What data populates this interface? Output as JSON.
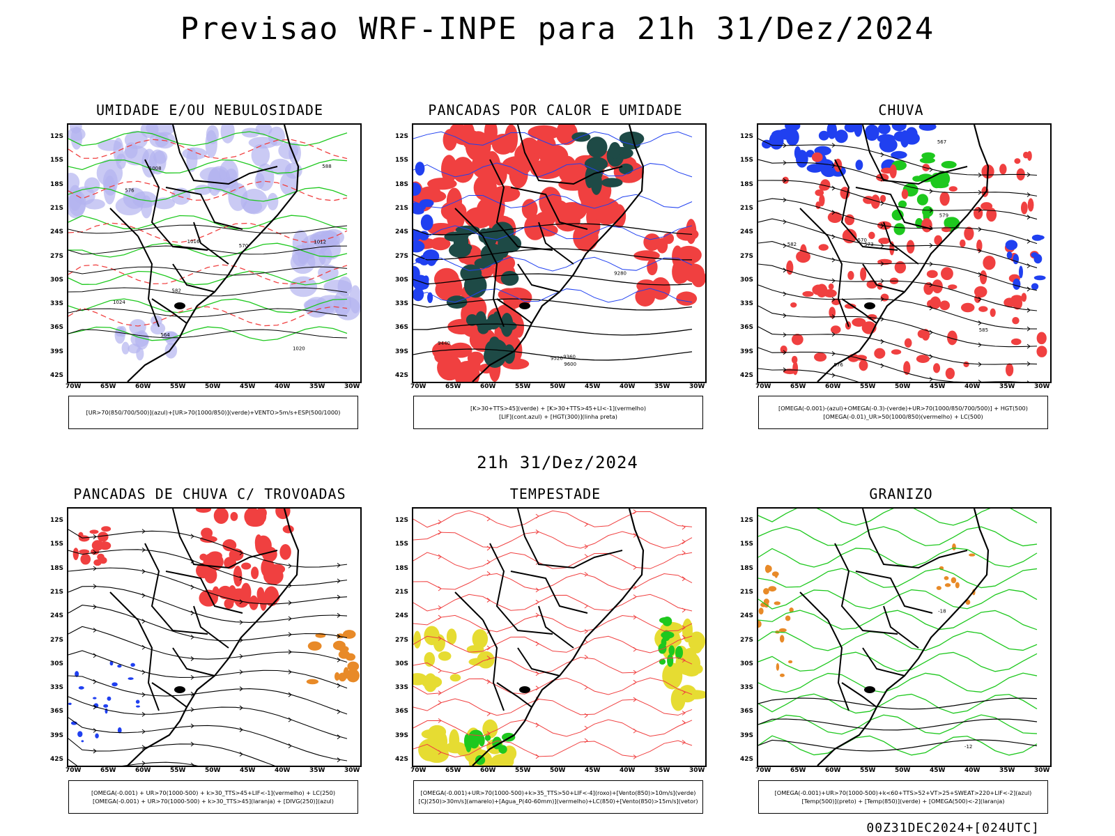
{
  "title": "Previsao WRF-INPE  para 21h 31/Dez/2024",
  "time_label": "21h 31/Dez/2024",
  "footer": "00Z31DEC2024+[024UTC]",
  "axes": {
    "lat_labels": [
      "12S",
      "15S",
      "18S",
      "21S",
      "24S",
      "27S",
      "30S",
      "33S",
      "36S",
      "39S",
      "42S"
    ],
    "lon_labels": [
      "70W",
      "65W",
      "60W",
      "55W",
      "50W",
      "45W",
      "40W",
      "35W",
      "30W"
    ]
  },
  "colors": {
    "green": "#1ec81e",
    "red": "#f04040",
    "blue": "#2040f0",
    "lavender": "#b4b4f0",
    "darkteal": "#1e4a46",
    "yellow": "#e6dc32",
    "orange": "#e88a28",
    "black": "#000000"
  },
  "panels": [
    {
      "title": "UMIDADE E/OU NEBULOSIDADE",
      "legend": [
        "[UR>70(850/700/500)](azul)+[UR>70(1000/850)](verde)+VENTO>5m/s+ESP(500/1000)"
      ],
      "contour_labels": [
        "1008",
        "1012",
        "1016",
        "1020",
        "1024",
        "576",
        "570",
        "564",
        "582",
        "588"
      ]
    },
    {
      "title": "PANCADAS POR CALOR E UMIDADE",
      "legend": [
        "[K>30+TTS>45](verde) + [K>30+TTS>45+LI<-1](vermelho)",
        "[LIF](cont.azul) + [HGT(300)](linha preta)"
      ],
      "contour_labels": [
        "9600",
        "9520",
        "9440",
        "9360",
        "9280"
      ]
    },
    {
      "title": "CHUVA",
      "legend": [
        "[OMEGA(-0.001)-(azul)+OMEGA(-0.3)-(verde)+UR>70(1000/850/700/500)] + HGT(500)",
        "[OMEGA(-0.01)_UR>50(1000/850)(vermelho) + LC(500)"
      ],
      "contour_labels": [
        "585",
        "582",
        "579",
        "576",
        "573",
        "570",
        "567"
      ]
    },
    {
      "title": "PANCADAS DE CHUVA C/ TROVOADAS",
      "legend": [
        "[OMEGA(-0.001) + UR>70(1000-500) + k>30_TTS>45+LIF<-1](vermelho) + LC(250)",
        "[OMEGA(-0.001) + UR>70(1000-500) + k>30_TTS>45](laranja) + [DIVG(250)](azul)"
      ],
      "contour_labels": []
    },
    {
      "title": "TEMPESTADE",
      "legend": [
        "[OMEGA(-0.001)+UR>70(1000-500)+k>35_TTS>50+LIF<-4](roxo)+[Vento(850)>10m/s](verde)",
        "[CJ(250)>30m/s](amarelo)+[Agua_P(40-60mm)](vermelho)+LC(850)+[Vento(850)>15m/s](vetor)"
      ],
      "contour_labels": []
    },
    {
      "title": "GRANIZO",
      "legend": [
        "[OMEGA(-0.001)+UR>70(1000-500)+k<60+TTS>52+VT>25+SWEAT>220+LIF<-2](azul)",
        "[Temp(500)](preto) + [Temp(850)](verde) + [OMEGA(500)<-2](laranja)"
      ],
      "contour_labels": [
        "-18",
        "-12"
      ]
    }
  ]
}
